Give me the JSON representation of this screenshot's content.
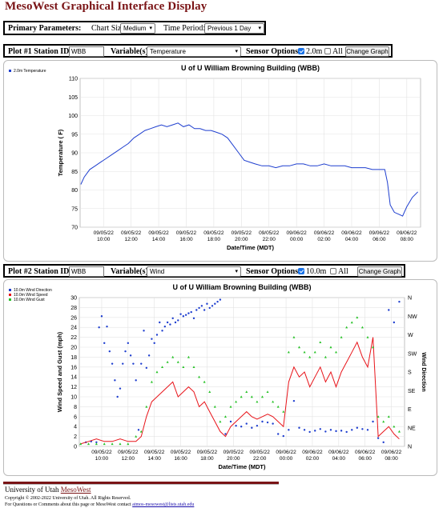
{
  "page_title": "MesoWest Graphical Interface Display",
  "primary": {
    "label": "Primary Parameters:",
    "chart_size_label": "Chart Size:",
    "chart_size_value": "Medium",
    "time_period_label": "Time Period:",
    "time_period_value": "Previous 1 Day"
  },
  "plot1": {
    "station_label": "Plot #1 Station ID:",
    "station_value": "WBB",
    "variables_label": "Variable(s):",
    "variable_value": "Temperature",
    "sensor_label": "Sensor Options:",
    "sensor_opt1": "2.0m",
    "sensor_opt1_checked": true,
    "sensor_opt2": "All",
    "sensor_opt2_checked": false,
    "button": "Change Graph"
  },
  "plot2": {
    "station_label": "Plot #2 Station ID:",
    "station_value": "WBB",
    "variables_label": "Variable(s):",
    "variable_value": "Wind",
    "sensor_label": "Sensor Options:",
    "sensor_opt1": "10.0m",
    "sensor_opt1_checked": true,
    "sensor_opt2": "All",
    "sensor_opt2_checked": false,
    "button": "Change Graph"
  },
  "footer": {
    "university": "University of Utah",
    "mesowest": "MesoWest",
    "copyright": "Copyright © 2002-2022 University of Utah. All Rights Reserved.",
    "contact_prefix": "For Questions or Comments about this page or MesoWest contact",
    "contact_email": "atmos-mesowest@lists.utah.edu"
  },
  "chart_data": [
    {
      "type": "line",
      "title": "U of U William Browning Building (WBB)",
      "xlabel": "Date/Time (MDT)",
      "ylabel": "Temperature ( F)",
      "ylim": [
        70,
        110
      ],
      "yticks": [
        70,
        75,
        80,
        85,
        90,
        95,
        100,
        105,
        110
      ],
      "xlim": [
        8.3,
        33.0
      ],
      "xticks": [
        {
          "x": 10,
          "l1": "09/05/22",
          "l2": "10:00"
        },
        {
          "x": 12,
          "l1": "09/05/22",
          "l2": "12:00"
        },
        {
          "x": 14,
          "l1": "09/05/22",
          "l2": "14:00"
        },
        {
          "x": 16,
          "l1": "09/05/22",
          "l2": "16:00"
        },
        {
          "x": 18,
          "l1": "09/05/22",
          "l2": "18:00"
        },
        {
          "x": 20,
          "l1": "09/05/22",
          "l2": "20:00"
        },
        {
          "x": 22,
          "l1": "09/05/22",
          "l2": "22:00"
        },
        {
          "x": 24,
          "l1": "09/06/22",
          "l2": "00:00"
        },
        {
          "x": 26,
          "l1": "09/06/22",
          "l2": "02:00"
        },
        {
          "x": 28,
          "l1": "09/06/22",
          "l2": "04:00"
        },
        {
          "x": 30,
          "l1": "09/06/22",
          "l2": "06:00"
        },
        {
          "x": 32,
          "l1": "09/06/22",
          "l2": "08:00"
        }
      ],
      "grid": true,
      "legend_position": "top-left",
      "series": [
        {
          "name": "2.0m Temperature",
          "color": "#1f3fcf",
          "x": [
            8.35,
            8.6,
            9.0,
            9.4,
            9.8,
            10.2,
            10.6,
            11.0,
            11.4,
            11.8,
            12.2,
            12.6,
            13.0,
            13.4,
            13.8,
            14.2,
            14.6,
            15.0,
            15.4,
            15.8,
            16.2,
            16.6,
            17.0,
            17.4,
            17.8,
            18.2,
            18.6,
            19.0,
            19.4,
            19.8,
            20.2,
            20.6,
            21.0,
            21.5,
            22.0,
            22.5,
            23.0,
            23.5,
            24.0,
            24.5,
            25.0,
            25.5,
            26.0,
            26.5,
            27.0,
            27.5,
            28.0,
            28.5,
            29.0,
            29.5,
            30.0,
            30.4,
            30.6,
            30.8,
            31.1,
            31.4,
            31.7,
            32.0,
            32.4,
            32.8
          ],
          "y": [
            81.5,
            83.5,
            85.5,
            86.5,
            87.5,
            88.5,
            89.5,
            90.5,
            91.5,
            92.5,
            94.0,
            95.0,
            96.0,
            96.5,
            97.0,
            97.5,
            97.0,
            97.5,
            98.0,
            97.0,
            97.5,
            96.5,
            96.5,
            96.0,
            96.0,
            95.5,
            95.0,
            94.0,
            92.0,
            90.0,
            88.0,
            87.5,
            87.0,
            86.5,
            86.5,
            86.0,
            86.5,
            86.5,
            87.0,
            87.0,
            86.5,
            86.5,
            87.0,
            86.5,
            86.5,
            86.5,
            86.0,
            86.0,
            86.0,
            85.5,
            85.5,
            85.5,
            82.0,
            76.0,
            74.0,
            73.5,
            73.0,
            75.5,
            78.0,
            79.5
          ]
        }
      ]
    },
    {
      "type": "scatter",
      "title": "U of U William Browning Building (WBB)",
      "xlabel": "Date/Time (MDT)",
      "ylabel": "Wind Speed and Gust (mph)",
      "ylabel_right": "Wind Direction",
      "ylim": [
        0,
        30
      ],
      "yticks": [
        0,
        2,
        4,
        6,
        8,
        10,
        12,
        14,
        16,
        18,
        20,
        22,
        24,
        26,
        28,
        30
      ],
      "yticks_right": [
        "N",
        "NE",
        "E",
        "SE",
        "S",
        "SW",
        "W",
        "NW",
        "N"
      ],
      "xlim": [
        8.3,
        33.0
      ],
      "xticks": [
        {
          "x": 10,
          "l1": "09/05/22",
          "l2": "10:00"
        },
        {
          "x": 12,
          "l1": "09/05/22",
          "l2": "12:00"
        },
        {
          "x": 14,
          "l1": "09/05/22",
          "l2": "14:00"
        },
        {
          "x": 16,
          "l1": "09/05/22",
          "l2": "16:00"
        },
        {
          "x": 18,
          "l1": "09/05/22",
          "l2": "18:00"
        },
        {
          "x": 20,
          "l1": "09/05/22",
          "l2": "20:00"
        },
        {
          "x": 22,
          "l1": "09/05/22",
          "l2": "22:00"
        },
        {
          "x": 24,
          "l1": "09/06/22",
          "l2": "00:00"
        },
        {
          "x": 26,
          "l1": "09/06/22",
          "l2": "02:00"
        },
        {
          "x": 28,
          "l1": "09/06/22",
          "l2": "04:00"
        },
        {
          "x": 30,
          "l1": "09/06/22",
          "l2": "06:00"
        },
        {
          "x": 32,
          "l1": "09/06/22",
          "l2": "08:00"
        }
      ],
      "grid": true,
      "legend_position": "top-left",
      "series": [
        {
          "name": "10.0m Wind Direction",
          "color": "#1f3fcf",
          "marker": "dot",
          "axis": "right",
          "x": [
            8.8,
            9.2,
            9.6,
            9.8,
            10.0,
            10.2,
            10.4,
            10.6,
            10.8,
            11.0,
            11.2,
            11.4,
            11.6,
            11.8,
            12.0,
            12.2,
            12.4,
            12.6,
            12.8,
            13.0,
            13.2,
            13.4,
            13.6,
            13.8,
            14.0,
            14.2,
            14.4,
            14.6,
            14.8,
            15.0,
            15.2,
            15.4,
            15.6,
            15.8,
            16.0,
            16.2,
            16.4,
            16.6,
            16.8,
            17.0,
            17.2,
            17.4,
            17.6,
            17.8,
            18.0,
            18.2,
            18.4,
            18.6,
            18.8,
            19.0,
            19.4,
            19.8,
            20.2,
            20.6,
            21.0,
            21.4,
            21.8,
            22.2,
            22.6,
            23.0,
            23.4,
            23.8,
            24.2,
            24.6,
            25.0,
            25.4,
            25.8,
            26.2,
            26.6,
            27.0,
            27.4,
            27.8,
            28.2,
            28.6,
            29.0,
            29.4,
            29.8,
            30.2,
            30.6,
            31.0,
            31.4,
            31.8,
            32.2,
            32.6
          ],
          "y": [
            10,
            12,
            10,
            288,
            315,
            250,
            290,
            230,
            200,
            160,
            120,
            140,
            200,
            230,
            250,
            220,
            200,
            160,
            40,
            200,
            280,
            190,
            220,
            260,
            250,
            270,
            300,
            280,
            290,
            300,
            295,
            310,
            300,
            305,
            320,
            315,
            318,
            322,
            325,
            310,
            330,
            335,
            340,
            330,
            345,
            335,
            340,
            345,
            350,
            355,
            30,
            60,
            50,
            48,
            55,
            45,
            50,
            60,
            58,
            55,
            30,
            25,
            40,
            110,
            45,
            40,
            35,
            38,
            42,
            36,
            40,
            37,
            38,
            35,
            40,
            45,
            42,
            40,
            60,
            20,
            10,
            330,
            300,
            350
          ]
        },
        {
          "name": "10.0m Wind Speed",
          "color": "#e8141a",
          "marker": "line",
          "axis": "left",
          "x": [
            8.4,
            9.0,
            9.6,
            10.2,
            10.8,
            11.4,
            12.0,
            12.6,
            13.0,
            13.4,
            13.8,
            14.2,
            14.6,
            15.0,
            15.4,
            15.8,
            16.2,
            16.6,
            17.0,
            17.4,
            17.8,
            18.2,
            18.6,
            19.0,
            19.4,
            19.8,
            20.2,
            20.6,
            21.0,
            21.4,
            21.8,
            22.2,
            22.6,
            23.0,
            23.4,
            23.8,
            24.2,
            24.6,
            25.0,
            25.4,
            25.8,
            26.2,
            26.6,
            27.0,
            27.4,
            27.8,
            28.2,
            28.6,
            29.0,
            29.4,
            29.8,
            30.2,
            30.6,
            31.0,
            31.4,
            31.8,
            32.2,
            32.6
          ],
          "y": [
            0.5,
            1.0,
            1.5,
            1.0,
            1.0,
            1.5,
            1.0,
            1.0,
            2.0,
            6.0,
            9.0,
            10.0,
            11.0,
            12.0,
            13.0,
            10.0,
            11.0,
            12.0,
            11.0,
            8.0,
            9.0,
            7.0,
            5.0,
            3.0,
            2.0,
            4.0,
            5.0,
            6.0,
            7.0,
            6.0,
            5.5,
            6.0,
            6.5,
            6.0,
            5.0,
            4.0,
            13.0,
            16.0,
            14.0,
            15.0,
            12.0,
            14.0,
            16.0,
            13.0,
            15.0,
            12.0,
            15.0,
            17.0,
            19.0,
            21.0,
            18.0,
            16.0,
            22.0,
            2.0,
            3.0,
            4.0,
            2.5,
            1.5
          ]
        },
        {
          "name": "10.0m Wind Gust",
          "color": "#27c227",
          "marker": "triangle",
          "axis": "left",
          "x": [
            8.4,
            9.0,
            9.6,
            10.2,
            10.8,
            11.4,
            12.0,
            12.6,
            13.0,
            13.4,
            13.8,
            14.2,
            14.6,
            15.0,
            15.4,
            15.8,
            16.2,
            16.6,
            17.0,
            17.4,
            17.8,
            18.2,
            18.6,
            19.0,
            19.4,
            19.8,
            20.2,
            20.6,
            21.0,
            21.4,
            21.8,
            22.2,
            22.6,
            23.0,
            23.4,
            23.8,
            24.2,
            24.6,
            25.0,
            25.4,
            25.8,
            26.2,
            26.6,
            27.0,
            27.4,
            27.8,
            28.2,
            28.6,
            29.0,
            29.4,
            29.8,
            30.2,
            30.6,
            31.0,
            31.4,
            31.8,
            32.2,
            32.6
          ],
          "y": [
            0.5,
            0.5,
            0.5,
            0.5,
            0.5,
            0.5,
            0.5,
            2.0,
            3.0,
            8.0,
            13.0,
            15.0,
            16.0,
            17.0,
            18.0,
            17.0,
            16.0,
            18.0,
            16.0,
            14.0,
            13.0,
            11.0,
            8.0,
            5.0,
            6.0,
            8.0,
            9.0,
            10.0,
            11.0,
            10.0,
            9.0,
            10.0,
            11.0,
            9.0,
            8.0,
            7.0,
            19.0,
            22.0,
            20.0,
            19.0,
            18.0,
            19.0,
            21.0,
            18.0,
            20.0,
            19.0,
            22.0,
            24.0,
            25.0,
            26.0,
            24.0,
            22.0,
            20.0,
            6.0,
            5.0,
            6.0,
            4.0,
            3.0
          ]
        }
      ]
    }
  ]
}
